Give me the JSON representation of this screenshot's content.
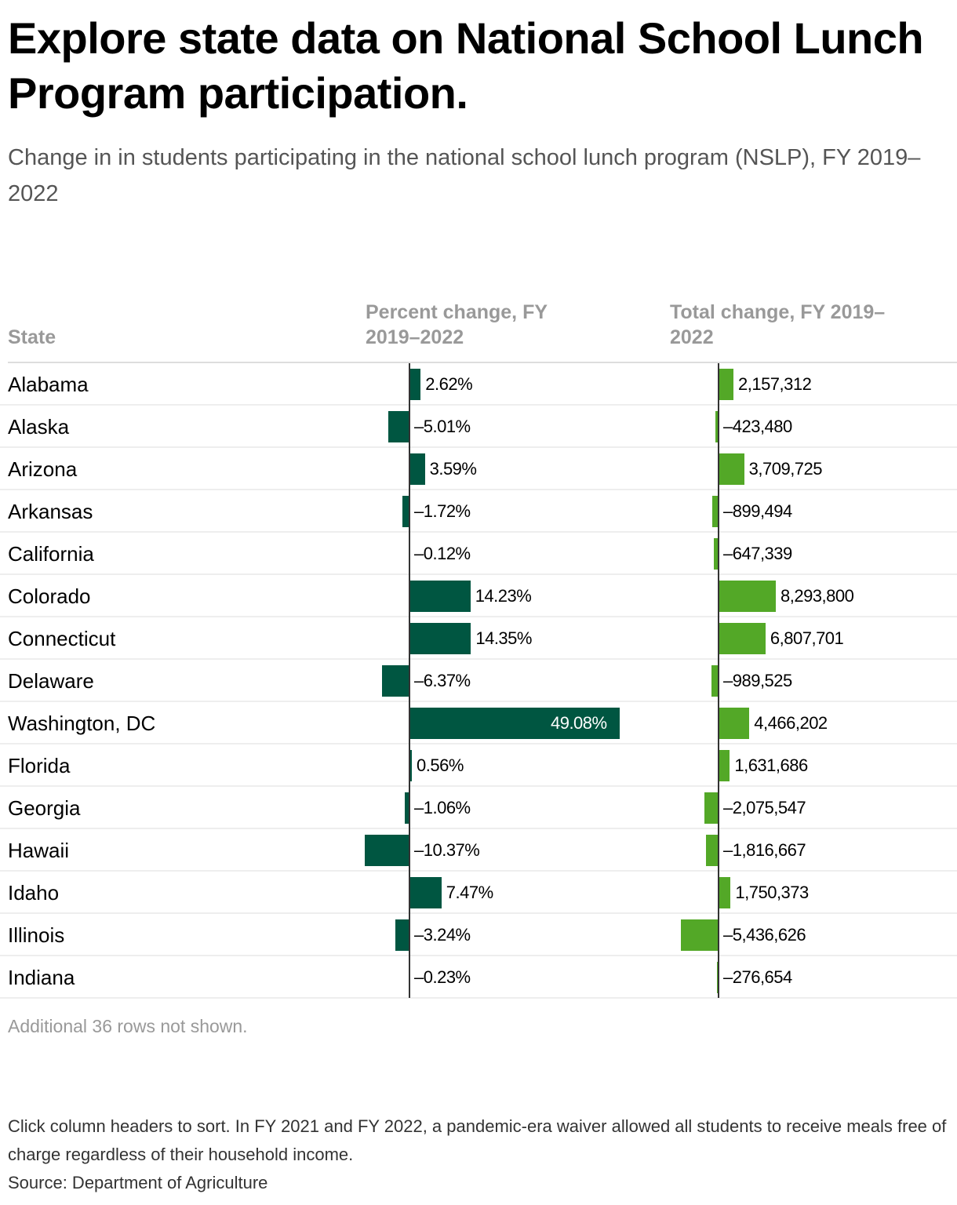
{
  "title": "Explore state data on National School Lunch Program participation.",
  "subtitle": "Change in in students participating in the national school lunch program (NSLP), FY 2019–2022",
  "more_rows": "Additional 36 rows not shown.",
  "notes": "Click column headers to sort. In FY 2021 and FY 2022, a pandemic-era waiver allowed all students to receive meals free of charge regardless of their household income.",
  "source": "Source: Department of Agriculture",
  "colors": {
    "percent": "#005641",
    "total": "#53a827"
  },
  "chart_data": {
    "type": "table",
    "columns": [
      "State",
      "Percent change, FY 2019–2022",
      "Total change, FY 2019–2022"
    ],
    "rows": [
      {
        "state": "Alabama",
        "pct": 2.62,
        "pct_label": "2.62%",
        "total": 2157312,
        "total_label": "2,157,312"
      },
      {
        "state": "Alaska",
        "pct": -5.01,
        "pct_label": "-5.01%",
        "total": -423480,
        "total_label": "-423,480"
      },
      {
        "state": "Arizona",
        "pct": 3.59,
        "pct_label": "3.59%",
        "total": 3709725,
        "total_label": "3,709,725"
      },
      {
        "state": "Arkansas",
        "pct": -1.72,
        "pct_label": "-1.72%",
        "total": -899494,
        "total_label": "-899,494"
      },
      {
        "state": "California",
        "pct": -0.12,
        "pct_label": "-0.12%",
        "total": -647339,
        "total_label": "-647,339"
      },
      {
        "state": "Colorado",
        "pct": 14.23,
        "pct_label": "14.23%",
        "total": 8293800,
        "total_label": "8,293,800"
      },
      {
        "state": "Connecticut",
        "pct": 14.35,
        "pct_label": "14.35%",
        "total": 6807701,
        "total_label": "6,807,701"
      },
      {
        "state": "Delaware",
        "pct": -6.37,
        "pct_label": "-6.37%",
        "total": -989525,
        "total_label": "-989,525"
      },
      {
        "state": "Washington, DC",
        "pct": 49.08,
        "pct_label": "49.08%",
        "total": 4466202,
        "total_label": "4,466,202"
      },
      {
        "state": "Florida",
        "pct": 0.56,
        "pct_label": "0.56%",
        "total": 1631686,
        "total_label": "1,631,686"
      },
      {
        "state": "Georgia",
        "pct": -1.06,
        "pct_label": "-1.06%",
        "total": -2075547,
        "total_label": "-2,075,547"
      },
      {
        "state": "Hawaii",
        "pct": -10.37,
        "pct_label": "-10.37%",
        "total": -1816667,
        "total_label": "-1,816,667"
      },
      {
        "state": "Idaho",
        "pct": 7.47,
        "pct_label": "7.47%",
        "total": 1750373,
        "total_label": "1,750,373"
      },
      {
        "state": "Illinois",
        "pct": -3.24,
        "pct_label": "-3.24%",
        "total": -5436626,
        "total_label": "-5,436,626"
      },
      {
        "state": "Indiana",
        "pct": -0.23,
        "pct_label": "-0.23%",
        "total": -276654,
        "total_label": "-276,654"
      }
    ]
  }
}
